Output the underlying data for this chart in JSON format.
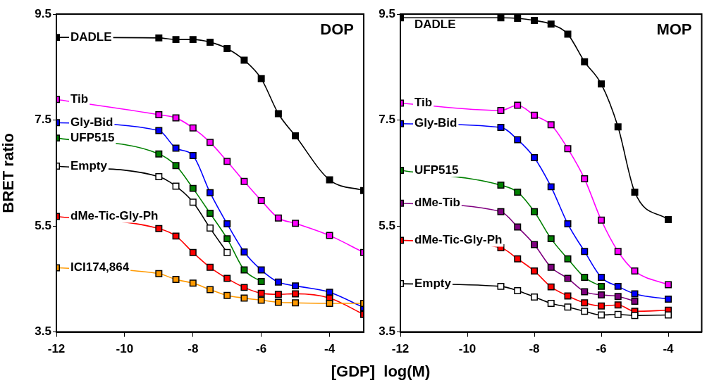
{
  "chart_data": [
    {
      "type": "line",
      "ylabel": "BRET ratio",
      "xlabel": "[GDP]  log(M)",
      "annotations": [
        "DOP"
      ],
      "marker": "square",
      "xlim": [
        -12,
        -3
      ],
      "xticks": [
        -12,
        -10,
        -8,
        -6,
        -4
      ],
      "ylim": [
        3.5,
        9.5
      ],
      "yticks": [
        3.5,
        5.5,
        7.5,
        9.5
      ],
      "x": [
        -12,
        -9,
        -8.5,
        -8,
        -7.5,
        -7,
        -6.5,
        -6,
        -5.5,
        -5,
        -4,
        -3
      ],
      "series": [
        {
          "name": "DADLE",
          "color": "#000000",
          "values": [
            9.06,
            9.05,
            9.02,
            9.02,
            8.97,
            8.85,
            8.63,
            8.28,
            7.62,
            7.2,
            6.37,
            6.17
          ]
        },
        {
          "name": "Tib",
          "color": "#ff00ff",
          "values": [
            7.89,
            7.6,
            7.54,
            7.35,
            7.08,
            6.72,
            6.34,
            5.98,
            5.65,
            5.55,
            5.32,
            5.0
          ]
        },
        {
          "name": "Gly-Bid",
          "color": "#0000ff",
          "values": [
            7.45,
            7.3,
            6.97,
            6.83,
            6.13,
            5.54,
            5.01,
            4.67,
            4.44,
            4.37,
            4.25,
            3.96
          ]
        },
        {
          "name": "UFP515",
          "color": "#008000",
          "values": [
            7.16,
            6.86,
            6.64,
            6.21,
            5.74,
            5.26,
            4.67,
            4.45,
            null,
            null,
            null,
            null
          ]
        },
        {
          "name": "Empty",
          "color": "#000000",
          "colors": [
            "#ffffff",
            "#ffffff",
            "#ffffff",
            "#ffffff",
            "#ffffff",
            "#ffffff",
            "#ffffff",
            "#ffffff",
            "#ffffff",
            "#ffffff",
            "#ffffff",
            "#ffffff"
          ],
          "values": [
            6.63,
            6.43,
            6.25,
            5.95,
            5.46,
            5.0,
            null,
            null,
            null,
            null,
            null,
            null
          ]
        },
        {
          "name": "dMe-Tic-Gly-Ph",
          "color": "#ff0000",
          "values": [
            5.68,
            5.45,
            5.31,
            5.0,
            4.72,
            4.51,
            4.34,
            4.23,
            4.21,
            4.22,
            4.14,
            3.83
          ]
        },
        {
          "name": "ICI174,864",
          "color": "#ff9900",
          "values": [
            4.71,
            4.6,
            4.49,
            4.42,
            4.3,
            4.19,
            4.14,
            4.1,
            4.06,
            4.05,
            4.04,
            4.04
          ]
        }
      ]
    },
    {
      "type": "line",
      "annotations": [
        "MOP"
      ],
      "marker": "square",
      "xlim": [
        -12,
        -3
      ],
      "xticks": [
        -12,
        -10,
        -8,
        -6,
        -4
      ],
      "ylim": [
        3.5,
        9.5
      ],
      "yticks": [
        3.5,
        5.5,
        7.5,
        9.5
      ],
      "x": [
        -12,
        -9,
        -8.5,
        -8,
        -7.5,
        -7,
        -6.5,
        -6,
        -5.5,
        -5,
        -4
      ],
      "series": [
        {
          "name": "DADLE",
          "color": "#000000",
          "values": [
            9.43,
            9.43,
            9.42,
            9.38,
            9.31,
            9.12,
            8.6,
            8.18,
            7.37,
            6.14,
            5.62
          ]
        },
        {
          "name": "Tib",
          "color": "#ff00ff",
          "values": [
            7.82,
            7.68,
            7.78,
            7.59,
            7.41,
            6.96,
            6.39,
            5.61,
            5.02,
            4.65,
            4.39
          ]
        },
        {
          "name": "Gly-Bid",
          "color": "#0000ff",
          "values": [
            7.43,
            7.36,
            7.13,
            6.79,
            6.24,
            5.54,
            5.02,
            4.53,
            4.36,
            4.22,
            4.12
          ]
        },
        {
          "name": "UFP515",
          "color": "#008000",
          "values": [
            6.55,
            6.27,
            6.14,
            5.77,
            5.26,
            4.88,
            4.53,
            4.36,
            null,
            null,
            null
          ]
        },
        {
          "name": "dMe-Tib",
          "color": "#800080",
          "values": [
            5.93,
            5.77,
            5.48,
            5.15,
            4.72,
            4.51,
            4.26,
            4.2,
            4.17,
            4.08,
            null
          ]
        },
        {
          "name": "dMe-Tic-Gly-Ph",
          "color": "#ff0000",
          "values": [
            5.23,
            5.09,
            4.88,
            4.65,
            4.35,
            4.18,
            4.05,
            3.99,
            4.01,
            3.89,
            3.91
          ]
        },
        {
          "name": "Empty",
          "color": "#000000",
          "colors": [
            "#ffffff",
            "#ffffff",
            "#ffffff",
            "#ffffff",
            "#ffffff",
            "#ffffff",
            "#ffffff",
            "#ffffff",
            "#ffffff",
            "#ffffff",
            "#ffffff"
          ],
          "values": [
            4.41,
            4.36,
            4.28,
            4.16,
            4.04,
            3.97,
            3.89,
            3.82,
            3.83,
            3.81,
            3.82
          ]
        }
      ]
    }
  ]
}
